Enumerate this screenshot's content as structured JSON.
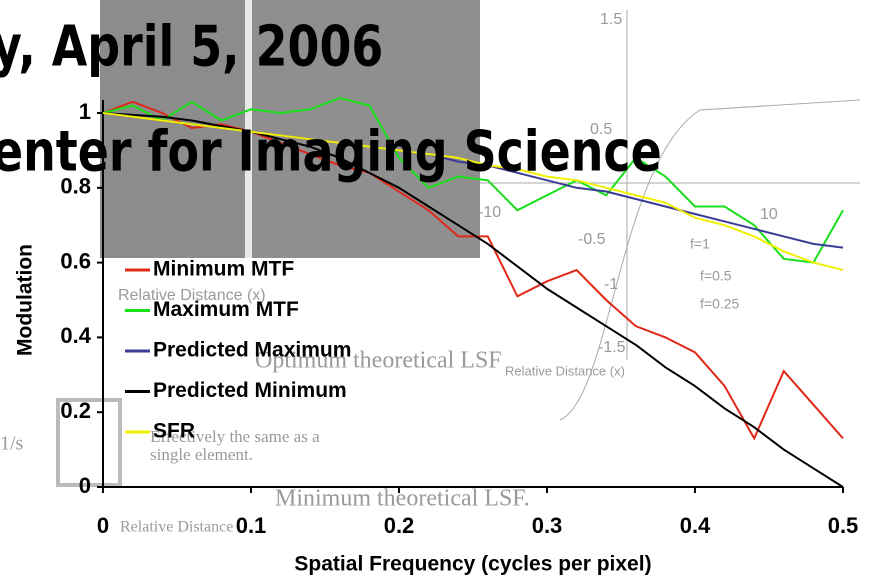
{
  "header": {
    "lines": [
      "y, April 5, 2006",
      "enter for Imaging Science"
    ]
  },
  "background": {
    "labels": [
      "1.5",
      "0.5",
      "-0.5",
      "-1",
      "-1.5",
      "10",
      "-10",
      "f=1",
      "f=0.5",
      "f=0.25",
      "Relative Distance (x)",
      "Relative Distance (x)",
      "Optimum theoretical LSF",
      "Effectively the same as a",
      "single element.",
      "Minimum theoretical LSF.",
      "Relative Distance",
      "1/s"
    ]
  },
  "chart_data": {
    "type": "line",
    "x_label": "Spatial Frequency (cycles per pixel)",
    "y_label": "Modulation",
    "x": [
      0,
      0.02,
      0.04,
      0.06,
      0.08,
      0.1,
      0.12,
      0.14,
      0.16,
      0.18,
      0.2,
      0.22,
      0.24,
      0.26,
      0.28,
      0.3,
      0.32,
      0.34,
      0.36,
      0.38,
      0.4,
      0.42,
      0.44,
      0.46,
      0.48,
      0.5
    ],
    "xlim": [
      0,
      0.5
    ],
    "xticks": [
      0,
      0.1,
      0.2,
      0.3,
      0.4,
      0.5
    ],
    "ylim": [
      0,
      1
    ],
    "yticks": [
      0,
      0.2,
      0.4,
      0.6,
      0.8,
      1
    ],
    "legend": "left",
    "series": [
      {
        "name": "Minimum MTF",
        "color": "#e02818",
        "values": [
          1,
          1.03,
          1.0,
          0.96,
          0.97,
          0.95,
          0.92,
          0.89,
          0.86,
          0.84,
          0.79,
          0.74,
          0.67,
          0.67,
          0.51,
          0.55,
          0.58,
          0.5,
          0.43,
          0.4,
          0.36,
          0.27,
          0.13,
          0.31,
          0.22,
          0.13
        ]
      },
      {
        "name": "Maximum MTF",
        "color": "#18e018",
        "values": [
          1,
          1.02,
          0.98,
          1.03,
          0.98,
          1.01,
          1.0,
          1.01,
          1.04,
          1.02,
          0.88,
          0.8,
          0.83,
          0.82,
          0.74,
          0.78,
          0.82,
          0.78,
          0.88,
          0.83,
          0.75,
          0.75,
          0.7,
          0.61,
          0.6,
          0.74
        ]
      },
      {
        "name": "Predicted Maximum",
        "color": "#3c3c96",
        "values": [
          1,
          0.99,
          0.98,
          0.97,
          0.96,
          0.95,
          0.94,
          0.93,
          0.92,
          0.91,
          0.9,
          0.89,
          0.87,
          0.86,
          0.84,
          0.82,
          0.8,
          0.79,
          0.77,
          0.75,
          0.73,
          0.71,
          0.69,
          0.67,
          0.65,
          0.64
        ]
      },
      {
        "name": "Predicted Minimum",
        "color": "#000000",
        "values": [
          1,
          0.995,
          0.99,
          0.98,
          0.965,
          0.95,
          0.93,
          0.91,
          0.88,
          0.84,
          0.8,
          0.75,
          0.7,
          0.65,
          0.59,
          0.53,
          0.48,
          0.43,
          0.38,
          0.32,
          0.27,
          0.21,
          0.16,
          0.1,
          0.05,
          0
        ]
      },
      {
        "name": "SFR",
        "color": "#f0f000",
        "values": [
          1,
          0.99,
          0.98,
          0.97,
          0.96,
          0.95,
          0.94,
          0.93,
          0.92,
          0.91,
          0.9,
          0.89,
          0.88,
          0.86,
          0.85,
          0.83,
          0.82,
          0.8,
          0.78,
          0.76,
          0.72,
          0.7,
          0.67,
          0.63,
          0.6,
          0.58
        ]
      }
    ]
  }
}
